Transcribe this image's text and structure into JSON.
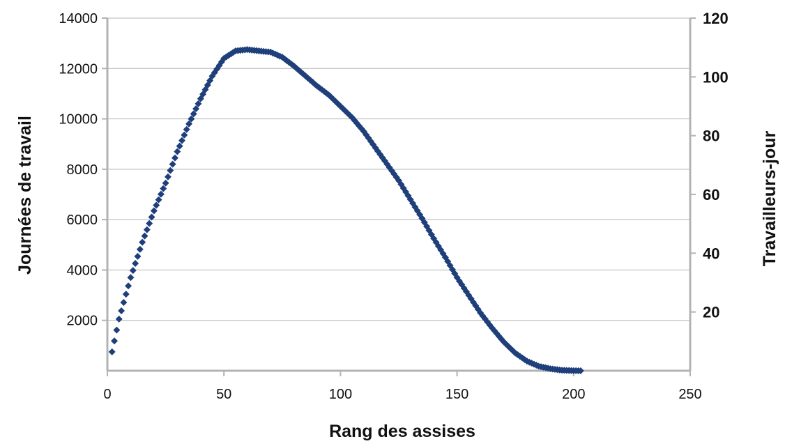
{
  "chart_data": {
    "type": "scatter",
    "title": "",
    "xlabel": "Rang des assises",
    "ylabel": "Journées de travail",
    "y2label": "Travailleurs-jour",
    "xlim": [
      0,
      250
    ],
    "ylim": [
      0,
      14000
    ],
    "y2lim": [
      0,
      120
    ],
    "x_ticks": [
      "0",
      "50",
      "100",
      "150",
      "200",
      "250"
    ],
    "y_ticks": [
      "2000",
      "4000",
      "6000",
      "8000",
      "10000",
      "12000",
      "14000"
    ],
    "y2_ticks": [
      "20",
      "40",
      "60",
      "80",
      "100",
      "120"
    ],
    "grid": "horizontal",
    "legend": "none",
    "marker": "diamond",
    "series": [
      {
        "color": "#1f3f7a",
        "points": [
          [
            2,
            750
          ],
          [
            5,
            2050
          ],
          [
            10,
            3700
          ],
          [
            15,
            5100
          ],
          [
            20,
            6350
          ],
          [
            25,
            7450
          ],
          [
            30,
            8700
          ],
          [
            35,
            9800
          ],
          [
            40,
            10800
          ],
          [
            45,
            11700
          ],
          [
            50,
            12400
          ],
          [
            55,
            12700
          ],
          [
            60,
            12750
          ],
          [
            65,
            12700
          ],
          [
            70,
            12650
          ],
          [
            75,
            12450
          ],
          [
            80,
            12100
          ],
          [
            85,
            11700
          ],
          [
            90,
            11300
          ],
          [
            95,
            10950
          ],
          [
            100,
            10500
          ],
          [
            105,
            10050
          ],
          [
            110,
            9500
          ],
          [
            115,
            8850
          ],
          [
            120,
            8200
          ],
          [
            125,
            7550
          ],
          [
            130,
            6800
          ],
          [
            135,
            6050
          ],
          [
            140,
            5250
          ],
          [
            145,
            4500
          ],
          [
            150,
            3700
          ],
          [
            155,
            3000
          ],
          [
            160,
            2300
          ],
          [
            165,
            1700
          ],
          [
            170,
            1150
          ],
          [
            175,
            700
          ],
          [
            180,
            380
          ],
          [
            185,
            180
          ],
          [
            190,
            80
          ],
          [
            195,
            20
          ],
          [
            200,
            5
          ],
          [
            203,
            0
          ]
        ]
      }
    ]
  }
}
